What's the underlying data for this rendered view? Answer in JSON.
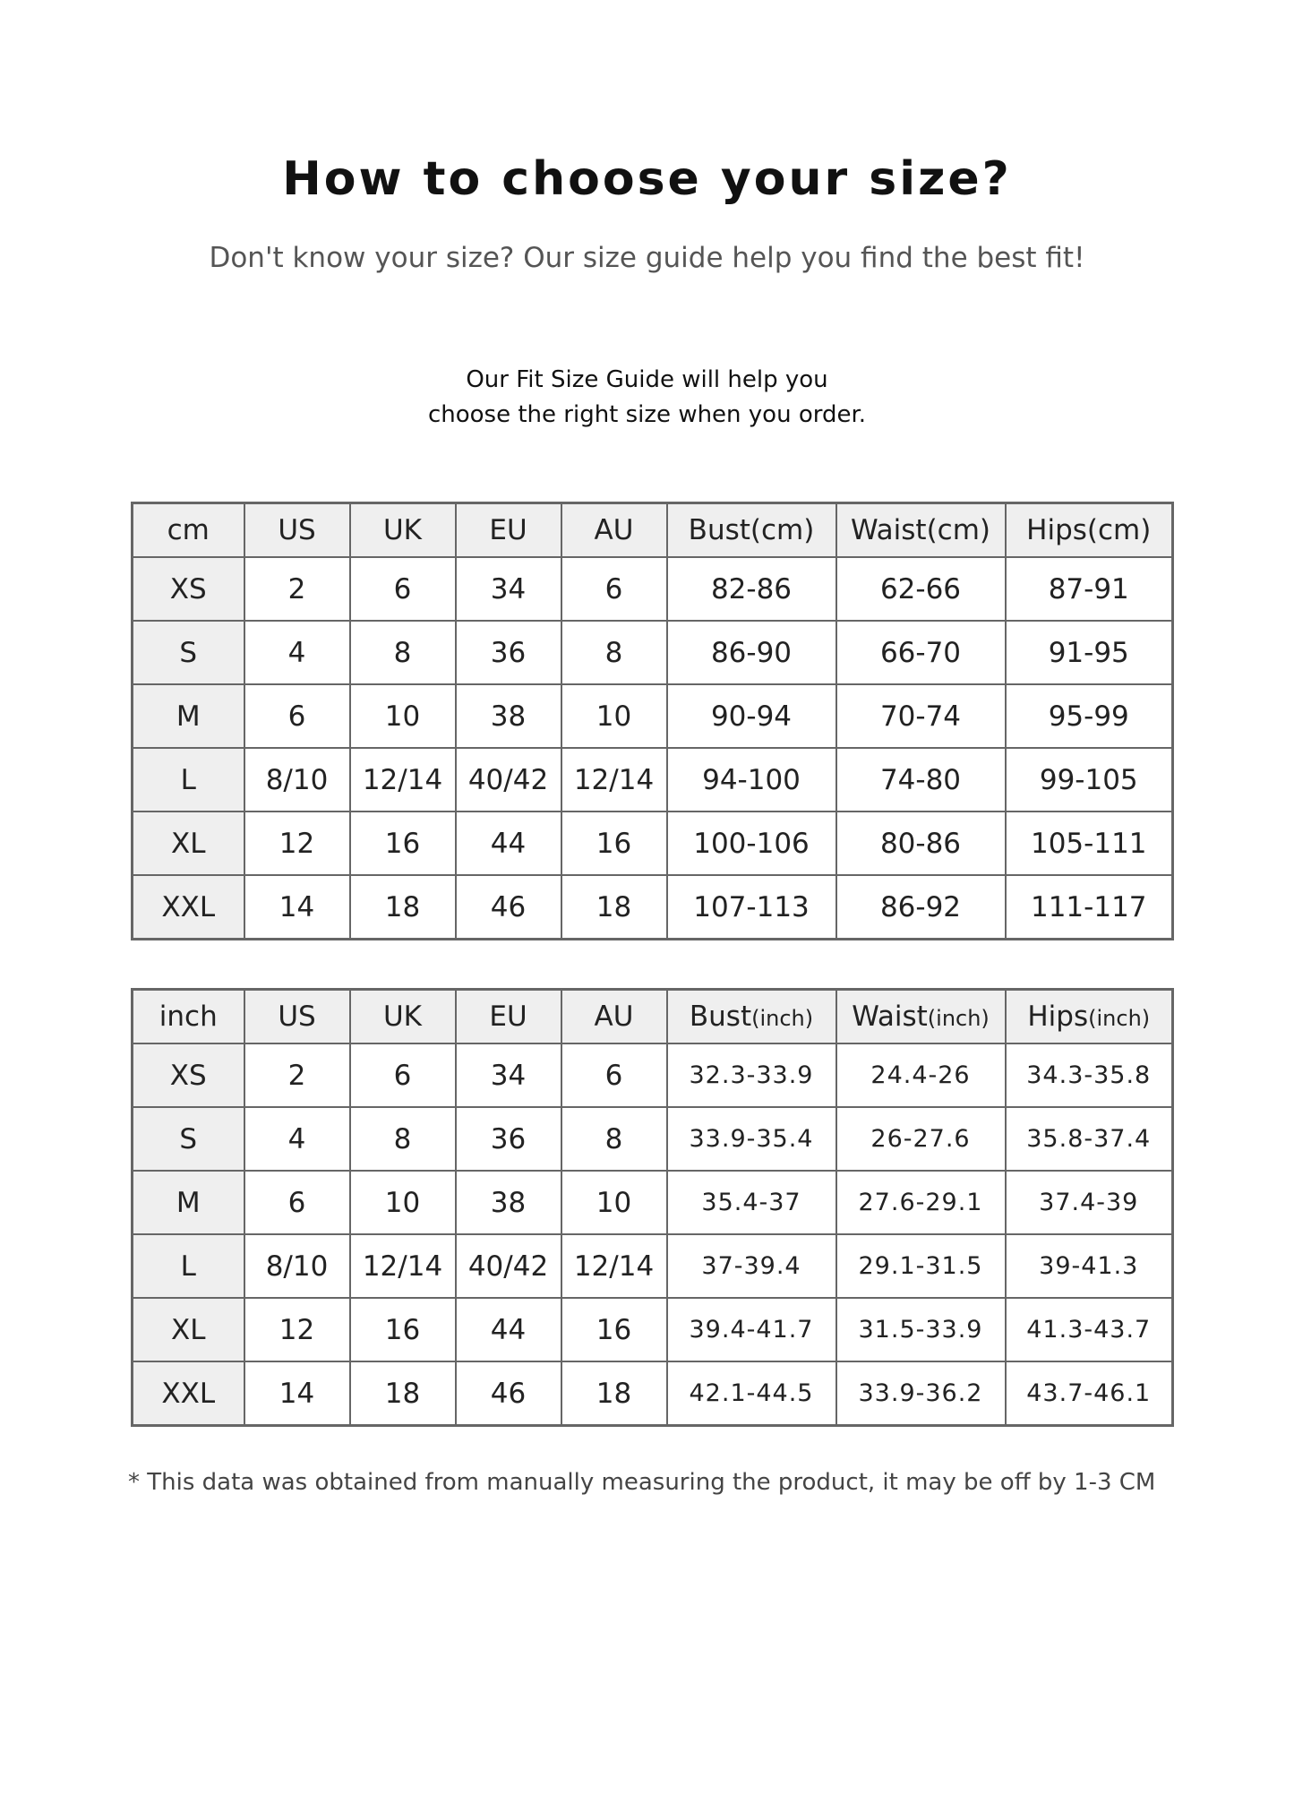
{
  "title": "How to choose your size?",
  "subtitle": "Don't know your size? Our size guide help you find the best fit!",
  "intro": [
    "Our Fit Size Guide will help you",
    "choose the right size when you order."
  ],
  "cm_table": {
    "header": [
      "cm",
      "US",
      "UK",
      "EU",
      "AU",
      "Bust(cm)",
      "Waist(cm)",
      "Hips(cm)"
    ],
    "rows": [
      [
        "XS",
        "2",
        "6",
        "34",
        "6",
        "82-86",
        "62-66",
        "87-91"
      ],
      [
        "S",
        "4",
        "8",
        "36",
        "8",
        "86-90",
        "66-70",
        "91-95"
      ],
      [
        "M",
        "6",
        "10",
        "38",
        "10",
        "90-94",
        "70-74",
        "95-99"
      ],
      [
        "L",
        "8/10",
        "12/14",
        "40/42",
        "12/14",
        "94-100",
        "74-80",
        "99-105"
      ],
      [
        "XL",
        "12",
        "16",
        "44",
        "16",
        "100-106",
        "80-86",
        "105-111"
      ],
      [
        "XXL",
        "14",
        "18",
        "46",
        "18",
        "107-113",
        "86-92",
        "111-117"
      ]
    ]
  },
  "inch_table": {
    "header": [
      "inch",
      "US",
      "UK",
      "EU",
      "AU"
    ],
    "header_measures": [
      [
        "Bust",
        "(inch)"
      ],
      [
        "Waist",
        "(inch)"
      ],
      [
        "Hips",
        "(inch)"
      ]
    ],
    "rows": [
      [
        "XS",
        "2",
        "6",
        "34",
        "6",
        "32.3-33.9",
        "24.4-26",
        "34.3-35.8"
      ],
      [
        "S",
        "4",
        "8",
        "36",
        "8",
        "33.9-35.4",
        "26-27.6",
        "35.8-37.4"
      ],
      [
        "M",
        "6",
        "10",
        "38",
        "10",
        "35.4-37",
        "27.6-29.1",
        "37.4-39"
      ],
      [
        "L",
        "8/10",
        "12/14",
        "40/42",
        "12/14",
        "37-39.4",
        "29.1-31.5",
        "39-41.3"
      ],
      [
        "XL",
        "12",
        "16",
        "44",
        "16",
        "39.4-41.7",
        "31.5-33.9",
        "41.3-43.7"
      ],
      [
        "XXL",
        "14",
        "18",
        "46",
        "18",
        "42.1-44.5",
        "33.9-36.2",
        "43.7-46.1"
      ]
    ]
  },
  "footnote": "* This data was obtained from manually measuring the product, it may be off by 1-3 CM",
  "colors": {
    "border": "#666666",
    "header_bg": "#efefef",
    "corner_bg": "#c9c9c9"
  }
}
